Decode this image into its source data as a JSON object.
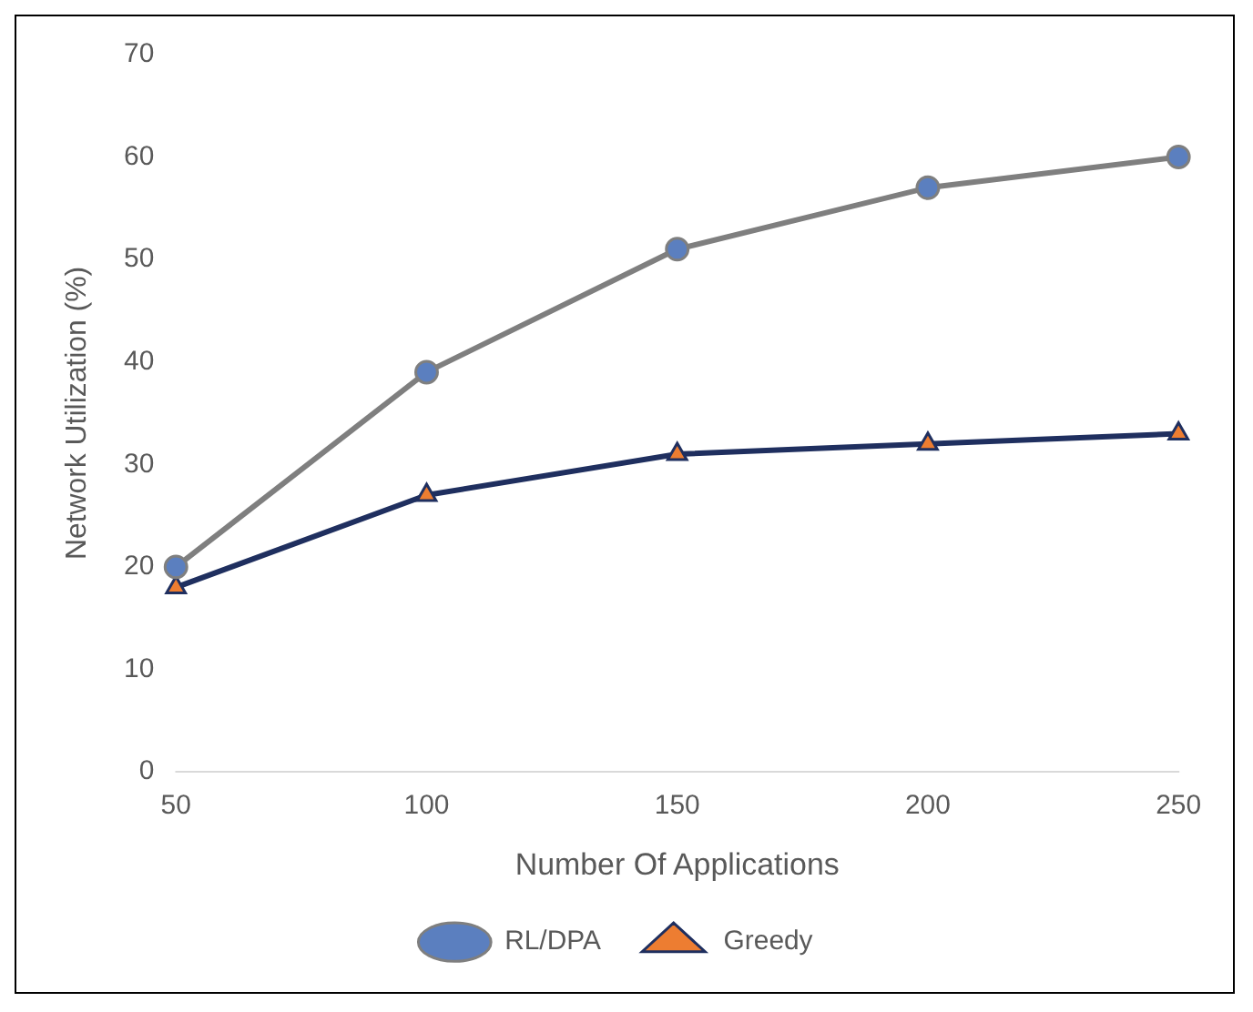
{
  "chart_data": {
    "type": "line",
    "xlabel": "Number Of Applications",
    "ylabel": "Network Utilization (%)",
    "categories": [
      "50",
      "100",
      "150",
      "200",
      "250"
    ],
    "series": [
      {
        "name": "RL/DPA",
        "color": "#7f7f7f",
        "marker": "circle",
        "colors": [
          "#5b7fbf",
          "#5b7fbf",
          "#5b7fbf",
          "#5b7fbf",
          "#5b7fbf"
        ],
        "values": [
          20,
          39,
          51,
          57,
          60
        ]
      },
      {
        "name": "Greedy",
        "color": "#1f2f5f",
        "marker": "triangle",
        "colors": [
          "#ed7d31",
          "#ed7d31",
          "#ed7d31",
          "#ed7d31",
          "#ed7d31"
        ],
        "values": [
          18,
          27,
          31,
          32,
          33
        ]
      }
    ],
    "ylim": [
      0,
      70
    ],
    "yticks": [
      0,
      10,
      20,
      30,
      40,
      50,
      60,
      70
    ],
    "grid": false,
    "legend": "bottom"
  }
}
